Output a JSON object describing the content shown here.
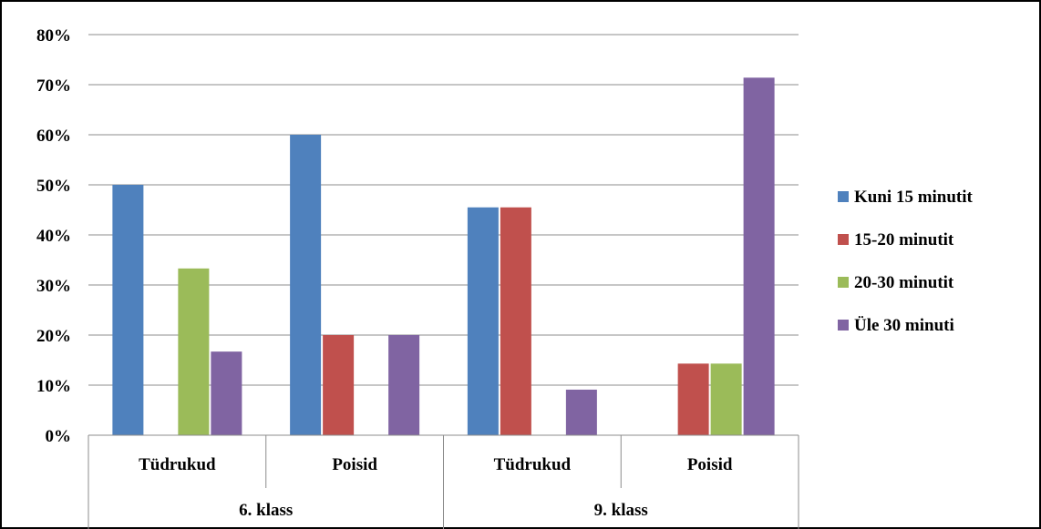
{
  "chart_data": {
    "type": "bar",
    "categories": [
      "Tüdrukud",
      "Poisid",
      "Tüdrukud",
      "Poisid"
    ],
    "groups": [
      {
        "label": "6. klass",
        "span": [
          0,
          1
        ]
      },
      {
        "label": "9. klass",
        "span": [
          2,
          3
        ]
      }
    ],
    "series": [
      {
        "name": "Kuni 15 minutit",
        "color": "#4F81BD",
        "values": [
          50,
          60,
          45.5,
          0
        ]
      },
      {
        "name": "15-20 minutit",
        "color": "#C0504D",
        "values": [
          0,
          20,
          45.5,
          14.3
        ]
      },
      {
        "name": "20-30 minutit",
        "color": "#9BBB59",
        "values": [
          33.3,
          0,
          0,
          14.3
        ]
      },
      {
        "name": "Üle 30 minuti",
        "color": "#8064A2",
        "values": [
          16.7,
          20,
          9.1,
          71.4
        ]
      }
    ],
    "y_ticks": [
      "0%",
      "10%",
      "20%",
      "30%",
      "40%",
      "50%",
      "60%",
      "70%",
      "80%"
    ],
    "ylim": [
      0,
      80
    ],
    "grid": true,
    "legend_position": "right"
  }
}
